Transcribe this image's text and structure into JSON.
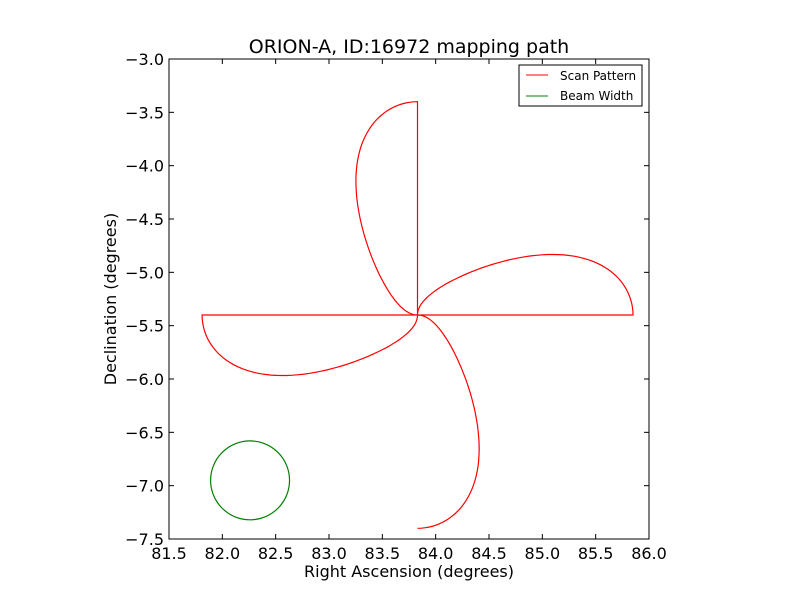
{
  "chart_data": {
    "type": "line",
    "title": "ORION-A, ID:16972 mapping path",
    "xlabel": "Right Ascension (degrees)",
    "ylabel": "Declination (degrees)",
    "xlim": [
      81.5,
      86.0
    ],
    "ylim": [
      -7.5,
      -3.0
    ],
    "xticks": [
      81.5,
      82.0,
      82.5,
      83.0,
      83.5,
      84.0,
      84.5,
      85.0,
      85.5,
      86.0
    ],
    "yticks": [
      -3.0,
      -3.5,
      -4.0,
      -4.5,
      -5.0,
      -5.5,
      -6.0,
      -6.5,
      -7.0,
      -7.5
    ],
    "xtick_labels": [
      "81.5",
      "82.0",
      "82.5",
      "83.0",
      "83.5",
      "84.0",
      "84.5",
      "85.0",
      "85.5",
      "86.0"
    ],
    "ytick_labels": [
      "−3.0",
      "−3.5",
      "−4.0",
      "−4.5",
      "−5.0",
      "−5.5",
      "−6.0",
      "−6.5",
      "−7.0",
      "−7.5"
    ],
    "grid": false,
    "legend_position": "top-right",
    "series": [
      {
        "name": "Scan Pattern",
        "color": "#ff0000",
        "center": [
          83.83,
          -5.4
        ],
        "petal_reach_ra": 2.02,
        "petal_reach_dec": 2.0,
        "petal_half_width_ra": 0.56,
        "petal_half_width_dec": 0.55
      },
      {
        "name": "Beam Width",
        "color": "#008000",
        "center": [
          82.26,
          -6.95
        ],
        "radius": 0.37
      }
    ]
  }
}
